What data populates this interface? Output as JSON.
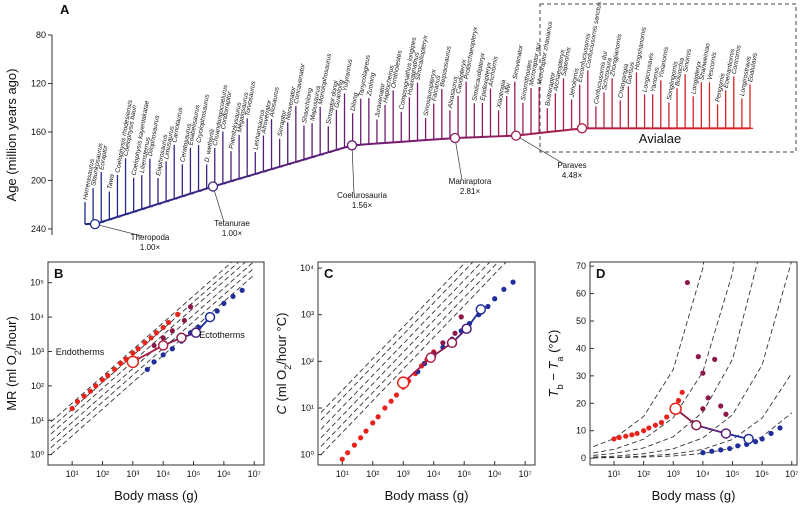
{
  "chart_data": [
    {
      "type": "tree",
      "panel_label": "A",
      "ylabel": "Age (million years ago)",
      "ylim": [
        80,
        245
      ],
      "yticks": [
        80,
        120,
        160,
        200,
        240
      ],
      "color_scale": [
        "#1c2a8c",
        "#7a1a6e",
        "#e3241f"
      ],
      "taxa": [
        "Herrerasaurus",
        "Staurikosaurus",
        "Eoraptor",
        "Tawa",
        "Coelophysis rhodesiensis",
        "Coelophysis bauri",
        "Coelophysis kayentakatae",
        "Liliensternus",
        "Dilophosaurus",
        "Elaphrosaurus",
        "Limusaurus",
        "Carnotaurus",
        "Ceratosaurus",
        "Eoabelisaurus",
        "Cryolophosaurus",
        "D. wetherilli",
        "Chuandongocoelurus",
        "Condorraptor",
        "Piatnitzkysaurus",
        "Megalosaurus",
        "Torvosaurus",
        "Leshansaurus",
        "Afrovenator",
        "Allosaurus",
        "Sinraptor",
        "Neovenator",
        "Concavenator",
        "Shaochilong",
        "Mapusaurus",
        "Monolophosaurus",
        "Sinraptor dongi",
        "Guanlong",
        "Yutyrannus",
        "Dilong",
        "Tanycolagreus",
        "Zuolong",
        "Juravenator",
        "Haplocheirus",
        "Ornitholestes",
        "Compsognathus longipes",
        "Huaxiagnathus",
        "Sinocalliopteryx",
        "Sinosauropteryx",
        "Falcarius",
        "Beipiaosaurus",
        "Alxasaurus",
        "Caudipteryx",
        "Protarchaeopteryx",
        "Similicaudipteryx",
        "Epidexipteryx",
        "Anchiornis",
        "Xiaotingia",
        "Mei",
        "Sinovenator",
        "Sinornithoides",
        "Microraptor gui",
        "Microraptor zhaoianus",
        "Buitreraptor",
        "Archaeopteryx",
        "Sapeornis",
        "Jeholornis",
        "Eoconfuciusornis",
        "Confuciusornis sanctus",
        "Confuciusornis dui",
        "Schizooura",
        "Zhongjianornis",
        "Chaoyangia",
        "Gansus",
        "Hongshanornis",
        "Longicrusavis",
        "Yanornis",
        "Yixianornis",
        "Songlingornis",
        "Boluochia",
        "Sinornis",
        "Longipteryx",
        "Shanweiniao",
        "Vescornis",
        "Pengornis",
        "Eoenantiornis",
        "Concornis",
        "Longirostravis",
        "Eoalulavis"
      ],
      "nodes": [
        {
          "name": "Theropoda",
          "ratio": "1.00×",
          "age": 236
        },
        {
          "name": "Tetanurae",
          "ratio": "1.00×",
          "age": 205
        },
        {
          "name": "Coelurosauria",
          "ratio": "1.56×",
          "age": 171
        },
        {
          "name": "Maniraptora",
          "ratio": "2.81×",
          "age": 165
        },
        {
          "name": "Paraves",
          "ratio": "4.48×",
          "age": 163
        },
        {
          "name": "Avialae",
          "age": 157
        }
      ]
    },
    {
      "type": "scatter",
      "panel_label": "B",
      "log": true,
      "xlabel": "Body mass (g)",
      "ylabel": [
        {
          "text": "MR (ml O"
        },
        {
          "text": "2",
          "sub": true
        },
        {
          "text": "/hour)"
        }
      ],
      "xlim": [
        1.6,
        21000000
      ],
      "ylim": [
        0.5,
        400000
      ],
      "xticks": [
        {
          "value": 10,
          "label": "10¹"
        },
        {
          "value": 100,
          "label": "10²"
        },
        {
          "value": 1000,
          "label": "10³"
        },
        {
          "value": 10000,
          "label": "10⁴"
        },
        {
          "value": 100000,
          "label": "10⁵"
        },
        {
          "value": 1000000,
          "label": "10⁶"
        },
        {
          "value": 10000000,
          "label": "10⁷"
        }
      ],
      "yticks": [
        {
          "value": 1,
          "label": "10⁰"
        },
        {
          "value": 10,
          "label": "10¹"
        },
        {
          "value": 100,
          "label": "10²"
        },
        {
          "value": 1000,
          "label": "10³"
        },
        {
          "value": 10000,
          "label": "10⁴"
        },
        {
          "value": 100000,
          "label": "10⁵"
        }
      ],
      "annotations": [
        "Endotherms",
        "Ectotherms"
      ],
      "series": [
        {
          "color": "#e8231c",
          "x": [
            10,
            15,
            25,
            40,
            60,
            100,
            150,
            250,
            400,
            600,
            1000,
            1500,
            2500,
            4000,
            6000,
            10000,
            15000,
            30000
          ],
          "values": [
            22,
            35,
            50,
            70,
            100,
            150,
            200,
            300,
            450,
            600,
            900,
            1200,
            1800,
            2500,
            3500,
            5000,
            7000,
            12000
          ]
        },
        {
          "color": "#8b1a4a",
          "x": [
            5000,
            10000,
            20000,
            50000,
            80000
          ],
          "values": [
            1500,
            2500,
            4000,
            8000,
            20000
          ]
        },
        {
          "color": "#1f2e9a",
          "x": [
            3000,
            5000,
            10000,
            20000,
            40000,
            80000,
            150000,
            300000,
            600000,
            1000000,
            2000000,
            4000000
          ],
          "values": [
            300,
            500,
            800,
            1200,
            2000,
            3500,
            5000,
            9000,
            15000,
            25000,
            40000,
            60000
          ]
        }
      ],
      "node_path": {
        "x": [
          1000,
          10000,
          40000,
          120000,
          350000
        ],
        "values": [
          500,
          1500,
          2500,
          3500,
          10000
        ],
        "colors": [
          "#e8231c",
          "#b01e48",
          "#8b1a4a",
          "#4a2080",
          "#1f2e9a"
        ]
      },
      "reference_lines": [
        {
          "x": [
            2,
            10000000
          ],
          "values": [
            1,
            170000
          ]
        },
        {
          "x": [
            2,
            10000000
          ],
          "values": [
            1.6,
            270000
          ]
        },
        {
          "x": [
            2,
            10000000
          ],
          "values": [
            2.5,
            420000
          ]
        },
        {
          "x": [
            2,
            10000000
          ],
          "values": [
            4,
            670000
          ]
        },
        {
          "x": [
            2,
            10000000
          ],
          "values": [
            6,
            1000000
          ]
        },
        {
          "x": [
            2,
            10000000
          ],
          "values": [
            9,
            1500000
          ]
        }
      ]
    },
    {
      "type": "scatter",
      "panel_label": "C",
      "log": true,
      "xlabel": "Body mass (g)",
      "ylabel": [
        {
          "text": "C",
          "italic": true
        },
        {
          "text": " (ml O"
        },
        {
          "text": "2",
          "sub": true
        },
        {
          "text": "/hour °C)"
        }
      ],
      "xlim": [
        1.6,
        21000000
      ],
      "ylim": [
        0.6,
        13500
      ],
      "xticks": [
        {
          "value": 10,
          "label": "10¹"
        },
        {
          "value": 100,
          "label": "10²"
        },
        {
          "value": 1000,
          "label": "10³"
        },
        {
          "value": 10000,
          "label": "10⁴"
        },
        {
          "value": 100000,
          "label": "10⁵"
        },
        {
          "value": 1000000,
          "label": "10⁶"
        },
        {
          "value": 10000000,
          "label": "10⁷"
        }
      ],
      "yticks": [
        {
          "value": 1,
          "label": "10⁰"
        },
        {
          "value": 10,
          "label": "10¹"
        },
        {
          "value": 100,
          "label": "10²"
        },
        {
          "value": 1000,
          "label": "10³"
        },
        {
          "value": 10000,
          "label": "10⁴"
        }
      ],
      "series": [
        {
          "color": "#e8231c",
          "x": [
            10,
            15,
            25,
            40,
            60,
            100,
            150,
            250,
            400,
            600,
            1000,
            1500,
            2500,
            4000,
            6000,
            10000
          ],
          "values": [
            0.8,
            1.1,
            1.6,
            2.3,
            3.2,
            4.8,
            6.5,
            10,
            14,
            19,
            28,
            38,
            55,
            80,
            110,
            160
          ]
        },
        {
          "color": "#8b1a4a",
          "x": [
            5000,
            10000,
            20000,
            50000,
            80000
          ],
          "values": [
            90,
            150,
            250,
            400,
            900
          ]
        },
        {
          "color": "#1f2e9a",
          "x": [
            3000,
            5000,
            10000,
            20000,
            40000,
            80000,
            150000,
            300000,
            600000,
            1000000,
            2000000,
            4000000
          ],
          "values": [
            60,
            90,
            130,
            200,
            300,
            450,
            650,
            1000,
            1500,
            2200,
            3500,
            5000
          ]
        }
      ],
      "node_path": {
        "x": [
          1000,
          8000,
          40000,
          120000,
          350000
        ],
        "values": [
          35,
          120,
          250,
          500,
          1300
        ],
        "colors": [
          "#e8231c",
          "#b01e48",
          "#8b1a4a",
          "#4a2080",
          "#1f2e9a"
        ]
      },
      "reference_lines": [
        {
          "x": [
            2,
            10000000
          ],
          "values": [
            1,
            36000
          ]
        },
        {
          "x": [
            2,
            10000000
          ],
          "values": [
            1.5,
            54000
          ]
        },
        {
          "x": [
            2,
            10000000
          ],
          "values": [
            2.3,
            83000
          ]
        },
        {
          "x": [
            2,
            10000000
          ],
          "values": [
            3.5,
            126000
          ]
        },
        {
          "x": [
            2,
            10000000
          ],
          "values": [
            5.5,
            198000
          ]
        },
        {
          "x": [
            2,
            10000000
          ],
          "values": [
            8,
            288000
          ]
        }
      ]
    },
    {
      "type": "scatter",
      "panel_label": "D",
      "log": false,
      "xlabel": "Body mass (g)",
      "ylabel": [
        {
          "text": "T",
          "italic": true
        },
        {
          "text": "b",
          "sub": true
        },
        {
          "text": " − "
        },
        {
          "text": "T",
          "italic": true
        },
        {
          "text": "a",
          "sub": true
        },
        {
          "text": " (°C)"
        }
      ],
      "xlim": [
        1.55,
        15000000
      ],
      "ylim": [
        -2.5,
        71.5
      ],
      "xticks": [
        {
          "value": 10,
          "label": "10¹"
        },
        {
          "value": 100,
          "label": "10²"
        },
        {
          "value": 1000,
          "label": "10³"
        },
        {
          "value": 10000,
          "label": "10⁴"
        },
        {
          "value": 100000,
          "label": "10⁵"
        },
        {
          "value": 1000000,
          "label": "10⁶"
        },
        {
          "value": 10000000,
          "label": "10⁷"
        }
      ],
      "yticks": [
        0,
        10,
        20,
        30,
        40,
        50,
        60,
        70
      ],
      "series": [
        {
          "color": "#e8231c",
          "x": [
            10,
            15,
            25,
            40,
            60,
            100,
            150,
            250,
            400,
            600,
            1000,
            1500,
            2000
          ],
          "values": [
            7,
            7.5,
            8,
            8.5,
            9,
            10,
            11,
            12,
            13,
            15,
            17,
            21,
            24
          ]
        },
        {
          "color": "#8b1a4a",
          "x": [
            3000,
            7000,
            10000,
            15000,
            25000,
            40000,
            60000,
            10000
          ],
          "values": [
            64,
            37,
            31,
            22,
            36,
            19,
            16,
            18
          ]
        },
        {
          "color": "#1f2e9a",
          "x": [
            10000,
            20000,
            40000,
            80000,
            150000,
            300000,
            600000,
            1000000,
            2000000,
            4000000
          ],
          "values": [
            2,
            2.5,
            3,
            3.5,
            4.5,
            5,
            6,
            7,
            9,
            11
          ]
        }
      ],
      "node_path": {
        "x": [
          1200,
          6000,
          60000,
          350000
        ],
        "values": [
          18,
          12,
          9,
          7
        ],
        "colors": [
          "#e8231c",
          "#8b1a4a",
          "#5a1e78",
          "#1f2e9a"
        ]
      },
      "reference_lines": [
        {
          "x": [
            2,
            10,
            100,
            1000,
            10000,
            100000
          ],
          "values": [
            4.2,
            7.1,
            15.2,
            32.3,
            69.3,
            148
          ]
        },
        {
          "x": [
            2,
            10,
            100,
            1000,
            10000,
            100000,
            1000000
          ],
          "values": [
            1.9,
            3.2,
            6.9,
            14.7,
            31.5,
            67.5,
            146
          ]
        },
        {
          "x": [
            2,
            10,
            100,
            1000,
            10000,
            100000,
            1000000
          ],
          "values": [
            1,
            1.7,
            3.7,
            7.8,
            16.8,
            36,
            78
          ]
        },
        {
          "x": [
            2,
            10,
            100,
            1000,
            10000,
            100000,
            1000000,
            10000000
          ],
          "values": [
            0.4,
            0.7,
            1.6,
            3.4,
            7.4,
            15.8,
            34,
            72
          ]
        },
        {
          "x": [
            2,
            10,
            100,
            1000,
            10000,
            100000,
            1000000,
            10000000
          ],
          "values": [
            0.2,
            0.3,
            0.7,
            1.5,
            3.2,
            6.8,
            14.6,
            31
          ]
        },
        {
          "x": [
            2,
            10,
            100,
            1000,
            10000,
            100000,
            1000000,
            10000000
          ],
          "values": [
            0.1,
            0.2,
            0.4,
            0.8,
            1.7,
            3.6,
            7.8,
            16.5
          ]
        }
      ]
    }
  ]
}
